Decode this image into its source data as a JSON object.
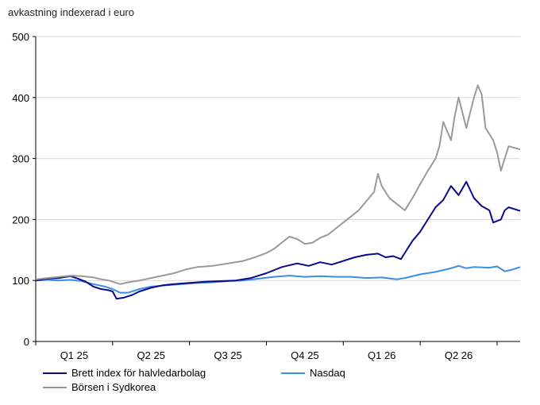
{
  "chart_data": {
    "type": "line",
    "ylabel": "avkastning indexerad i euro",
    "ylim": [
      0,
      500
    ],
    "yticks": [
      0,
      100,
      200,
      300,
      400,
      500
    ],
    "x_quarter_labels": [
      "Q1 25",
      "Q2 25",
      "Q3 25",
      "Q4 25",
      "Q1 26",
      "Q2 26"
    ],
    "x_range": [
      0,
      6.3
    ],
    "grid": "horizontal",
    "legend_placement": "bottom",
    "series": [
      {
        "name": "Brett index för halvledarbolag",
        "color": "#0a0a8c",
        "points": [
          [
            0,
            100
          ],
          [
            0.15,
            103
          ],
          [
            0.3,
            104
          ],
          [
            0.45,
            107
          ],
          [
            0.55,
            103
          ],
          [
            0.65,
            98
          ],
          [
            0.75,
            90
          ],
          [
            0.85,
            86
          ],
          [
            0.95,
            84
          ],
          [
            1.0,
            82
          ],
          [
            1.05,
            70
          ],
          [
            1.15,
            72
          ],
          [
            1.25,
            76
          ],
          [
            1.35,
            82
          ],
          [
            1.5,
            88
          ],
          [
            1.65,
            92
          ],
          [
            1.8,
            94
          ],
          [
            2.0,
            96
          ],
          [
            2.2,
            98
          ],
          [
            2.4,
            99
          ],
          [
            2.6,
            100
          ],
          [
            2.8,
            104
          ],
          [
            3.0,
            112
          ],
          [
            3.2,
            122
          ],
          [
            3.4,
            128
          ],
          [
            3.55,
            124
          ],
          [
            3.7,
            130
          ],
          [
            3.85,
            126
          ],
          [
            4.0,
            132
          ],
          [
            4.15,
            138
          ],
          [
            4.3,
            142
          ],
          [
            4.45,
            144
          ],
          [
            4.55,
            138
          ],
          [
            4.65,
            140
          ],
          [
            4.75,
            135
          ],
          [
            4.9,
            165
          ],
          [
            5.0,
            180
          ],
          [
            5.1,
            200
          ],
          [
            5.2,
            220
          ],
          [
            5.3,
            232
          ],
          [
            5.4,
            255
          ],
          [
            5.5,
            240
          ],
          [
            5.6,
            262
          ],
          [
            5.7,
            235
          ],
          [
            5.8,
            222
          ],
          [
            5.9,
            215
          ],
          [
            5.95,
            195
          ],
          [
            6.05,
            200
          ],
          [
            6.1,
            215
          ],
          [
            6.15,
            220
          ],
          [
            6.3,
            214
          ]
        ]
      },
      {
        "name": "Nasdaq",
        "color": "#3a8ee6",
        "points": [
          [
            0,
            100
          ],
          [
            0.15,
            101
          ],
          [
            0.3,
            100
          ],
          [
            0.45,
            101
          ],
          [
            0.6,
            99
          ],
          [
            0.75,
            94
          ],
          [
            0.9,
            90
          ],
          [
            1.0,
            86
          ],
          [
            1.1,
            80
          ],
          [
            1.2,
            80
          ],
          [
            1.35,
            86
          ],
          [
            1.5,
            90
          ],
          [
            1.7,
            92
          ],
          [
            1.9,
            94
          ],
          [
            2.1,
            96
          ],
          [
            2.3,
            97
          ],
          [
            2.5,
            99
          ],
          [
            2.7,
            100
          ],
          [
            2.9,
            103
          ],
          [
            3.1,
            106
          ],
          [
            3.3,
            108
          ],
          [
            3.5,
            106
          ],
          [
            3.7,
            107
          ],
          [
            3.9,
            106
          ],
          [
            4.1,
            106
          ],
          [
            4.3,
            104
          ],
          [
            4.5,
            105
          ],
          [
            4.7,
            102
          ],
          [
            4.8,
            104
          ],
          [
            5.0,
            110
          ],
          [
            5.2,
            114
          ],
          [
            5.4,
            120
          ],
          [
            5.5,
            124
          ],
          [
            5.6,
            120
          ],
          [
            5.7,
            122
          ],
          [
            5.9,
            121
          ],
          [
            6.0,
            123
          ],
          [
            6.1,
            115
          ],
          [
            6.2,
            118
          ],
          [
            6.3,
            122
          ]
        ]
      },
      {
        "name": "Börsen i Sydkorea",
        "color": "#9a9a9a",
        "points": [
          [
            0,
            102
          ],
          [
            0.15,
            104
          ],
          [
            0.3,
            106
          ],
          [
            0.45,
            108
          ],
          [
            0.6,
            107
          ],
          [
            0.75,
            105
          ],
          [
            0.85,
            102
          ],
          [
            0.95,
            100
          ],
          [
            1.05,
            96
          ],
          [
            1.1,
            94
          ],
          [
            1.2,
            97
          ],
          [
            1.35,
            100
          ],
          [
            1.5,
            104
          ],
          [
            1.65,
            108
          ],
          [
            1.8,
            112
          ],
          [
            1.95,
            118
          ],
          [
            2.1,
            122
          ],
          [
            2.3,
            124
          ],
          [
            2.5,
            128
          ],
          [
            2.7,
            132
          ],
          [
            2.85,
            138
          ],
          [
            3.0,
            145
          ],
          [
            3.1,
            152
          ],
          [
            3.2,
            162
          ],
          [
            3.3,
            172
          ],
          [
            3.4,
            168
          ],
          [
            3.5,
            160
          ],
          [
            3.6,
            162
          ],
          [
            3.7,
            170
          ],
          [
            3.8,
            175
          ],
          [
            3.9,
            185
          ],
          [
            4.0,
            195
          ],
          [
            4.1,
            205
          ],
          [
            4.2,
            215
          ],
          [
            4.3,
            230
          ],
          [
            4.4,
            245
          ],
          [
            4.45,
            275
          ],
          [
            4.5,
            255
          ],
          [
            4.6,
            235
          ],
          [
            4.7,
            225
          ],
          [
            4.8,
            215
          ],
          [
            4.9,
            235
          ],
          [
            5.0,
            258
          ],
          [
            5.1,
            280
          ],
          [
            5.2,
            300
          ],
          [
            5.25,
            320
          ],
          [
            5.3,
            360
          ],
          [
            5.4,
            330
          ],
          [
            5.45,
            370
          ],
          [
            5.5,
            400
          ],
          [
            5.55,
            375
          ],
          [
            5.6,
            350
          ],
          [
            5.7,
            400
          ],
          [
            5.75,
            420
          ],
          [
            5.8,
            405
          ],
          [
            5.85,
            350
          ],
          [
            5.95,
            330
          ],
          [
            6.0,
            310
          ],
          [
            6.05,
            280
          ],
          [
            6.1,
            300
          ],
          [
            6.15,
            320
          ],
          [
            6.3,
            315
          ]
        ]
      }
    ]
  }
}
